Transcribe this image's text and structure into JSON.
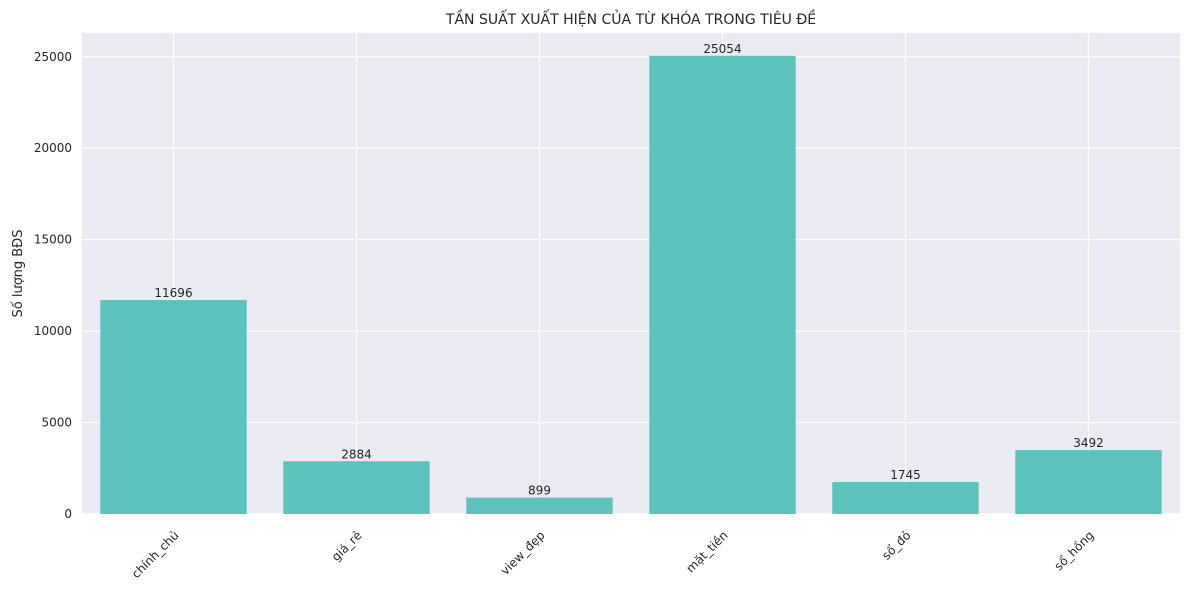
{
  "chart_data": {
    "type": "bar",
    "title": "TẦN SUẤT XUẤT HIỆN CỦA TỪ KHÓA TRONG TIÊU ĐỀ",
    "xlabel": "",
    "ylabel": "Số lượng BĐS",
    "categories": [
      "chính_chủ",
      "giá_rẻ",
      "view_đẹp",
      "mặt_tiền",
      "sổ_đỏ",
      "sổ_hồng"
    ],
    "values": [
      11696,
      2884,
      899,
      25054,
      1745,
      3492
    ],
    "ylim": [
      0,
      26300
    ],
    "yticks": [
      0,
      5000,
      10000,
      15000,
      20000,
      25000
    ],
    "grid": true,
    "colors": {
      "bar": "#4ebdb6",
      "background": "#eaeaf2",
      "grid": "#ffffff"
    }
  }
}
